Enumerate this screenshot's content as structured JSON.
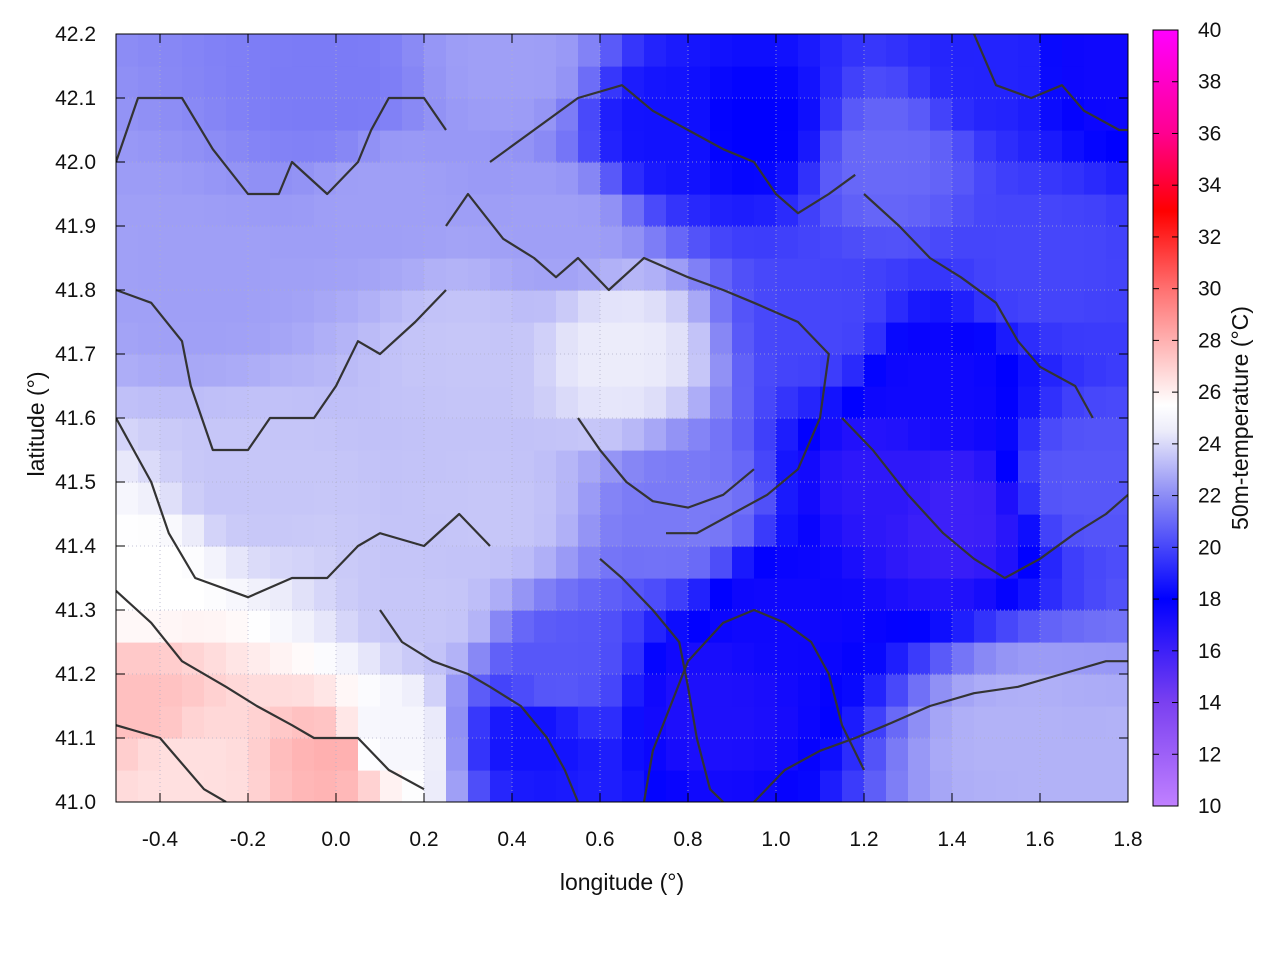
{
  "chart_data": {
    "type": "heatmap",
    "title": "",
    "xlabel": "longitude (°)",
    "ylabel": "latitude (°)",
    "colorbar_label": "50m-temperature (°C)",
    "xlim": [
      -0.5,
      1.8
    ],
    "ylim": [
      41.0,
      42.2
    ],
    "x_ticks": [
      "-0.4",
      "-0.2",
      "0.0",
      "0.2",
      "0.4",
      "0.6",
      "0.8",
      "1.0",
      "1.2",
      "1.4",
      "1.6",
      "1.8"
    ],
    "x_tick_values": [
      -0.4,
      -0.2,
      0.0,
      0.2,
      0.4,
      0.6,
      0.8,
      1.0,
      1.2,
      1.4,
      1.6,
      1.8
    ],
    "y_ticks": [
      "41.0",
      "41.1",
      "41.2",
      "41.3",
      "41.4",
      "41.5",
      "41.6",
      "41.7",
      "41.8",
      "41.9",
      "42.0",
      "42.1",
      "42.2"
    ],
    "y_tick_values": [
      41.0,
      41.1,
      41.2,
      41.3,
      41.4,
      41.5,
      41.6,
      41.7,
      41.8,
      41.9,
      42.0,
      42.1,
      42.2
    ],
    "colorbar_range": [
      10,
      40
    ],
    "colorbar_ticks": [
      "10",
      "12",
      "14",
      "16",
      "18",
      "20",
      "22",
      "24",
      "26",
      "28",
      "30",
      "32",
      "34",
      "36",
      "38",
      "40"
    ],
    "colorbar_tick_values": [
      10,
      12,
      14,
      16,
      18,
      20,
      22,
      24,
      26,
      28,
      30,
      32,
      34,
      36,
      38,
      40
    ],
    "colormap": [
      {
        "value": 10,
        "color": "#c080ff"
      },
      {
        "value": 14,
        "color": "#7a40f0"
      },
      {
        "value": 18,
        "color": "#0000ff"
      },
      {
        "value": 22,
        "color": "#8c8cf5"
      },
      {
        "value": 24.5,
        "color": "#ececfa"
      },
      {
        "value": 25.5,
        "color": "#ffffff"
      },
      {
        "value": 27,
        "color": "#ffd0d0"
      },
      {
        "value": 30,
        "color": "#ff7070"
      },
      {
        "value": 33,
        "color": "#ff0000"
      },
      {
        "value": 36,
        "color": "#ff0090"
      },
      {
        "value": 40,
        "color": "#ff00ff"
      }
    ],
    "grid": true,
    "temperature_samples": [
      {
        "lon": -0.45,
        "lat": 41.15,
        "t": 27.5
      },
      {
        "lon": -0.35,
        "lat": 41.05,
        "t": 26.5
      },
      {
        "lon": -0.45,
        "lat": 41.35,
        "t": 25.5
      },
      {
        "lon": 0.0,
        "lat": 41.07,
        "t": 28.0
      },
      {
        "lon": 0.1,
        "lat": 41.1,
        "t": 25.0
      },
      {
        "lon": -0.2,
        "lat": 41.5,
        "t": 23.5
      },
      {
        "lon": -0.3,
        "lat": 41.8,
        "t": 22.5
      },
      {
        "lon": 0.0,
        "lat": 42.1,
        "t": 21.5
      },
      {
        "lon": 0.3,
        "lat": 41.7,
        "t": 23.5
      },
      {
        "lon": 0.5,
        "lat": 41.9,
        "t": 22.5
      },
      {
        "lon": 0.65,
        "lat": 41.7,
        "t": 24.5
      },
      {
        "lon": 0.75,
        "lat": 42.05,
        "t": 18.5
      },
      {
        "lon": 0.95,
        "lat": 42.05,
        "t": 18.0
      },
      {
        "lon": 0.5,
        "lat": 41.2,
        "t": 20.5
      },
      {
        "lon": 0.45,
        "lat": 41.1,
        "t": 18.5
      },
      {
        "lon": 0.85,
        "lat": 41.15,
        "t": 17.0
      },
      {
        "lon": 1.0,
        "lat": 41.3,
        "t": 17.5
      },
      {
        "lon": 1.25,
        "lat": 41.5,
        "t": 16.5
      },
      {
        "lon": 1.4,
        "lat": 41.45,
        "t": 16.0
      },
      {
        "lon": 1.35,
        "lat": 41.65,
        "t": 17.5
      },
      {
        "lon": 1.1,
        "lat": 41.75,
        "t": 20.0
      },
      {
        "lon": 1.6,
        "lat": 41.85,
        "t": 20.0
      },
      {
        "lon": 1.75,
        "lat": 42.15,
        "t": 17.5
      },
      {
        "lon": 1.5,
        "lat": 42.15,
        "t": 19.0
      },
      {
        "lon": 1.25,
        "lat": 42.0,
        "t": 21.0
      },
      {
        "lon": 1.7,
        "lat": 41.5,
        "t": 20.5
      },
      {
        "lon": 1.55,
        "lat": 41.1,
        "t": 23.0
      },
      {
        "lon": 1.75,
        "lat": 41.05,
        "t": 23.0
      },
      {
        "lon": 0.2,
        "lat": 41.3,
        "t": 23.5
      },
      {
        "lon": 0.35,
        "lat": 41.45,
        "t": 23.5
      },
      {
        "lon": 0.8,
        "lat": 41.45,
        "t": 21.5
      },
      {
        "lon": 0.1,
        "lat": 41.95,
        "t": 22.5
      },
      {
        "lon": 0.4,
        "lat": 42.15,
        "t": 22.5
      }
    ],
    "contours": [
      {
        "name": "contour-1",
        "points": [
          [
            -0.5,
            42.0
          ],
          [
            -0.45,
            42.1
          ],
          [
            -0.35,
            42.1
          ],
          [
            -0.28,
            42.02
          ],
          [
            -0.2,
            41.95
          ],
          [
            -0.13,
            41.95
          ],
          [
            -0.1,
            42.0
          ],
          [
            -0.02,
            41.95
          ],
          [
            0.05,
            42.0
          ],
          [
            0.08,
            42.05
          ],
          [
            0.12,
            42.1
          ],
          [
            0.2,
            42.1
          ],
          [
            0.25,
            42.05
          ]
        ]
      },
      {
        "name": "contour-2",
        "points": [
          [
            -0.5,
            41.8
          ],
          [
            -0.42,
            41.78
          ],
          [
            -0.35,
            41.72
          ],
          [
            -0.33,
            41.65
          ],
          [
            -0.28,
            41.55
          ],
          [
            -0.2,
            41.55
          ],
          [
            -0.15,
            41.6
          ],
          [
            -0.05,
            41.6
          ],
          [
            0.0,
            41.65
          ],
          [
            0.05,
            41.72
          ],
          [
            0.1,
            41.7
          ],
          [
            0.18,
            41.75
          ],
          [
            0.25,
            41.8
          ]
        ]
      },
      {
        "name": "contour-3",
        "points": [
          [
            -0.5,
            41.6
          ],
          [
            -0.42,
            41.5
          ],
          [
            -0.38,
            41.42
          ],
          [
            -0.32,
            41.35
          ],
          [
            -0.2,
            41.32
          ],
          [
            -0.1,
            41.35
          ],
          [
            -0.02,
            41.35
          ],
          [
            0.05,
            41.4
          ],
          [
            0.1,
            41.42
          ],
          [
            0.2,
            41.4
          ],
          [
            0.28,
            41.45
          ],
          [
            0.35,
            41.4
          ]
        ]
      },
      {
        "name": "contour-4",
        "points": [
          [
            -0.5,
            41.33
          ],
          [
            -0.42,
            41.28
          ],
          [
            -0.35,
            41.22
          ],
          [
            -0.25,
            41.18
          ],
          [
            -0.18,
            41.15
          ],
          [
            -0.1,
            41.12
          ],
          [
            -0.05,
            41.1
          ],
          [
            0.05,
            41.1
          ],
          [
            0.12,
            41.05
          ],
          [
            0.2,
            41.02
          ]
        ]
      },
      {
        "name": "contour-5",
        "points": [
          [
            -0.5,
            41.12
          ],
          [
            -0.4,
            41.1
          ],
          [
            -0.3,
            41.02
          ],
          [
            -0.25,
            41.0
          ]
        ]
      },
      {
        "name": "contour-6",
        "points": [
          [
            0.25,
            41.9
          ],
          [
            0.3,
            41.95
          ],
          [
            0.38,
            41.88
          ],
          [
            0.45,
            41.85
          ],
          [
            0.5,
            41.82
          ],
          [
            0.55,
            41.85
          ],
          [
            0.62,
            41.8
          ],
          [
            0.7,
            41.85
          ],
          [
            0.8,
            41.82
          ],
          [
            0.88,
            41.8
          ],
          [
            0.95,
            41.78
          ],
          [
            1.05,
            41.75
          ],
          [
            1.12,
            41.7
          ],
          [
            1.1,
            41.6
          ],
          [
            1.05,
            41.52
          ],
          [
            0.98,
            41.48
          ],
          [
            0.9,
            41.45
          ],
          [
            0.82,
            41.42
          ],
          [
            0.75,
            41.42
          ]
        ]
      },
      {
        "name": "contour-7",
        "points": [
          [
            0.35,
            42.0
          ],
          [
            0.45,
            42.05
          ],
          [
            0.55,
            42.1
          ],
          [
            0.65,
            42.12
          ],
          [
            0.72,
            42.08
          ],
          [
            0.8,
            42.05
          ],
          [
            0.88,
            42.02
          ],
          [
            0.95,
            42.0
          ],
          [
            1.0,
            41.95
          ],
          [
            1.05,
            41.92
          ],
          [
            1.12,
            41.95
          ],
          [
            1.18,
            41.98
          ]
        ]
      },
      {
        "name": "contour-8",
        "points": [
          [
            0.6,
            41.38
          ],
          [
            0.65,
            41.35
          ],
          [
            0.72,
            41.3
          ],
          [
            0.78,
            41.25
          ],
          [
            0.8,
            41.18
          ],
          [
            0.82,
            41.1
          ],
          [
            0.85,
            41.02
          ],
          [
            0.88,
            41.0
          ]
        ]
      },
      {
        "name": "contour-9",
        "points": [
          [
            0.7,
            41.0
          ],
          [
            0.72,
            41.08
          ],
          [
            0.76,
            41.15
          ],
          [
            0.8,
            41.22
          ],
          [
            0.88,
            41.28
          ],
          [
            0.95,
            41.3
          ],
          [
            1.02,
            41.28
          ],
          [
            1.08,
            41.25
          ],
          [
            1.12,
            41.2
          ],
          [
            1.15,
            41.12
          ],
          [
            1.2,
            41.05
          ]
        ]
      },
      {
        "name": "contour-10",
        "points": [
          [
            0.95,
            41.0
          ],
          [
            1.02,
            41.05
          ],
          [
            1.1,
            41.08
          ],
          [
            1.18,
            41.1
          ],
          [
            1.25,
            41.12
          ],
          [
            1.35,
            41.15
          ],
          [
            1.45,
            41.17
          ],
          [
            1.55,
            41.18
          ],
          [
            1.65,
            41.2
          ],
          [
            1.75,
            41.22
          ],
          [
            1.8,
            41.22
          ]
        ]
      },
      {
        "name": "contour-11",
        "points": [
          [
            1.15,
            41.6
          ],
          [
            1.22,
            41.55
          ],
          [
            1.3,
            41.48
          ],
          [
            1.38,
            41.42
          ],
          [
            1.45,
            41.38
          ],
          [
            1.52,
            41.35
          ],
          [
            1.6,
            41.38
          ],
          [
            1.68,
            41.42
          ],
          [
            1.75,
            41.45
          ],
          [
            1.8,
            41.48
          ]
        ]
      },
      {
        "name": "contour-12",
        "points": [
          [
            1.2,
            41.95
          ],
          [
            1.28,
            41.9
          ],
          [
            1.35,
            41.85
          ],
          [
            1.42,
            41.82
          ],
          [
            1.5,
            41.78
          ],
          [
            1.55,
            41.72
          ],
          [
            1.6,
            41.68
          ],
          [
            1.68,
            41.65
          ],
          [
            1.72,
            41.6
          ]
        ]
      },
      {
        "name": "contour-13",
        "points": [
          [
            0.1,
            41.3
          ],
          [
            0.15,
            41.25
          ],
          [
            0.22,
            41.22
          ],
          [
            0.3,
            41.2
          ],
          [
            0.35,
            41.18
          ],
          [
            0.42,
            41.15
          ],
          [
            0.48,
            41.1
          ],
          [
            0.52,
            41.05
          ],
          [
            0.55,
            41.0
          ]
        ]
      },
      {
        "name": "contour-14",
        "points": [
          [
            0.55,
            41.6
          ],
          [
            0.6,
            41.55
          ],
          [
            0.66,
            41.5
          ],
          [
            0.72,
            41.47
          ],
          [
            0.8,
            41.46
          ],
          [
            0.88,
            41.48
          ],
          [
            0.95,
            41.52
          ]
        ]
      },
      {
        "name": "contour-15",
        "points": [
          [
            1.45,
            42.2
          ],
          [
            1.5,
            42.12
          ],
          [
            1.58,
            42.1
          ],
          [
            1.65,
            42.12
          ],
          [
            1.7,
            42.08
          ],
          [
            1.78,
            42.05
          ],
          [
            1.8,
            42.05
          ]
        ]
      }
    ]
  }
}
